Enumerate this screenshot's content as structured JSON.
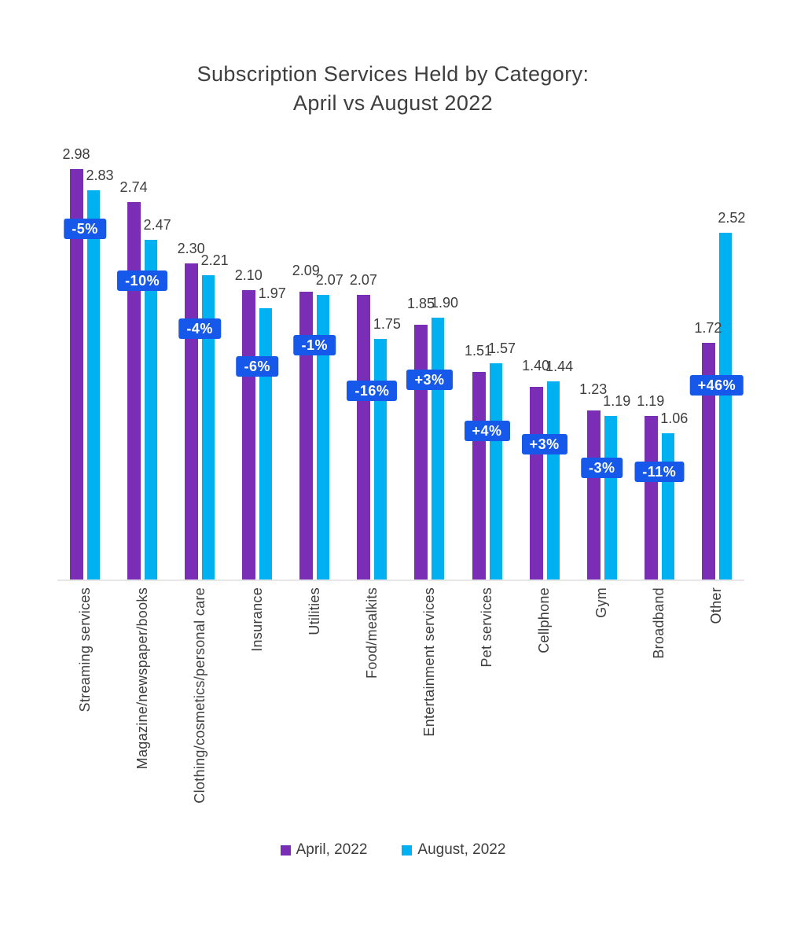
{
  "chart_data": {
    "type": "bar",
    "title": "Subscription Services Held by Category: April vs August 2022",
    "title_lines": [
      "Subscription Services Held by Category:",
      "April vs August 2022"
    ],
    "categories": [
      "Streaming services",
      "Magazine/newspaper/books",
      "Clothing/cosmetics/personal care",
      "Insurance",
      "Utilities",
      "Food/mealkits",
      "Entertainment services",
      "Pet services",
      "Cellphone",
      "Gym",
      "Broadband",
      "Other"
    ],
    "series": [
      {
        "name": "April, 2022",
        "color": "#7A2EB5",
        "values": [
          "2.98",
          "2.74",
          "2.30",
          "2.10",
          "2.09",
          "2.07",
          "1.85",
          "1.51",
          "1.40",
          "1.23",
          "1.19",
          "1.72"
        ]
      },
      {
        "name": "August, 2022",
        "color": "#00B1F2",
        "values": [
          "2.83",
          "2.47",
          "2.21",
          "1.97",
          "2.07",
          "1.75",
          "1.90",
          "1.57",
          "1.44",
          "1.19",
          "1.06",
          "2.52"
        ]
      }
    ],
    "change_badges": [
      {
        "label": "-5%",
        "y": 2.55
      },
      {
        "label": "-10%",
        "y": 2.17
      },
      {
        "label": "-4%",
        "y": 1.82
      },
      {
        "label": "-6%",
        "y": 1.55
      },
      {
        "label": "-1%",
        "y": 1.7
      },
      {
        "label": "-16%",
        "y": 1.37
      },
      {
        "label": "+3%",
        "y": 1.45
      },
      {
        "label": "+4%",
        "y": 1.08
      },
      {
        "label": "+3%",
        "y": 0.98
      },
      {
        "label": "-3%",
        "y": 0.81
      },
      {
        "label": "-11%",
        "y": 0.78
      },
      {
        "label": "+46%",
        "y": 1.41
      }
    ],
    "badge_color": "#1658EA",
    "badge_text_color": "#ffffff",
    "text_color": "#3d3d3d",
    "axis_color": "#e7e7e7",
    "ylim": [
      0,
      3.3
    ],
    "grid": false,
    "legend_position": "bottom"
  }
}
